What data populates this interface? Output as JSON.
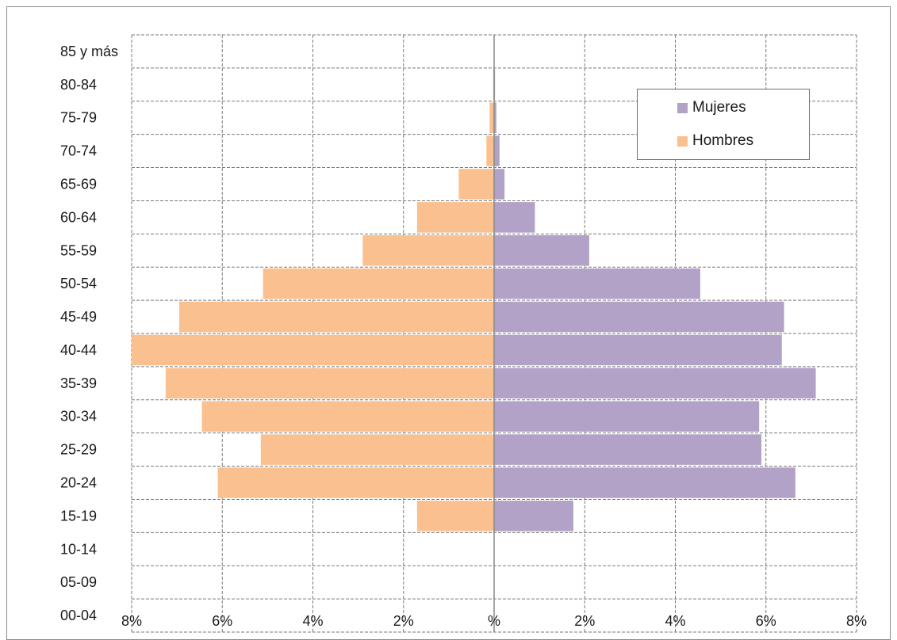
{
  "chart_data": {
    "type": "bar",
    "orientation": "horizontal",
    "layout": "population-pyramid",
    "categories": [
      "00-04",
      "05-09",
      "10-14",
      "15-19",
      "20-24",
      "25-29",
      "30-34",
      "35-39",
      "40-44",
      "45-49",
      "50-54",
      "55-59",
      "60-64",
      "65-69",
      "70-74",
      "75-79",
      "80-84",
      "85 y más"
    ],
    "series": [
      {
        "name": "Mujeres",
        "color": "#B2A2C7",
        "side": "right",
        "values": [
          0,
          0,
          0,
          1.75,
          6.65,
          5.9,
          5.85,
          7.1,
          6.35,
          6.4,
          4.55,
          2.1,
          0.9,
          0.23,
          0.12,
          0.05,
          0.02,
          0
        ]
      },
      {
        "name": "Hombres",
        "color": "#FAC090",
        "side": "left",
        "values": [
          0,
          0,
          0,
          1.7,
          6.1,
          5.15,
          6.45,
          7.25,
          8.0,
          6.95,
          5.1,
          2.9,
          1.7,
          0.78,
          0.17,
          0.1,
          0.02,
          0
        ]
      }
    ],
    "x_ticks": [
      "8%",
      "6%",
      "4%",
      "2%",
      "%",
      "2%",
      "4%",
      "6%",
      "8%"
    ],
    "xlim": [
      -8,
      8
    ],
    "grid": true,
    "legend_position": "top-right"
  }
}
